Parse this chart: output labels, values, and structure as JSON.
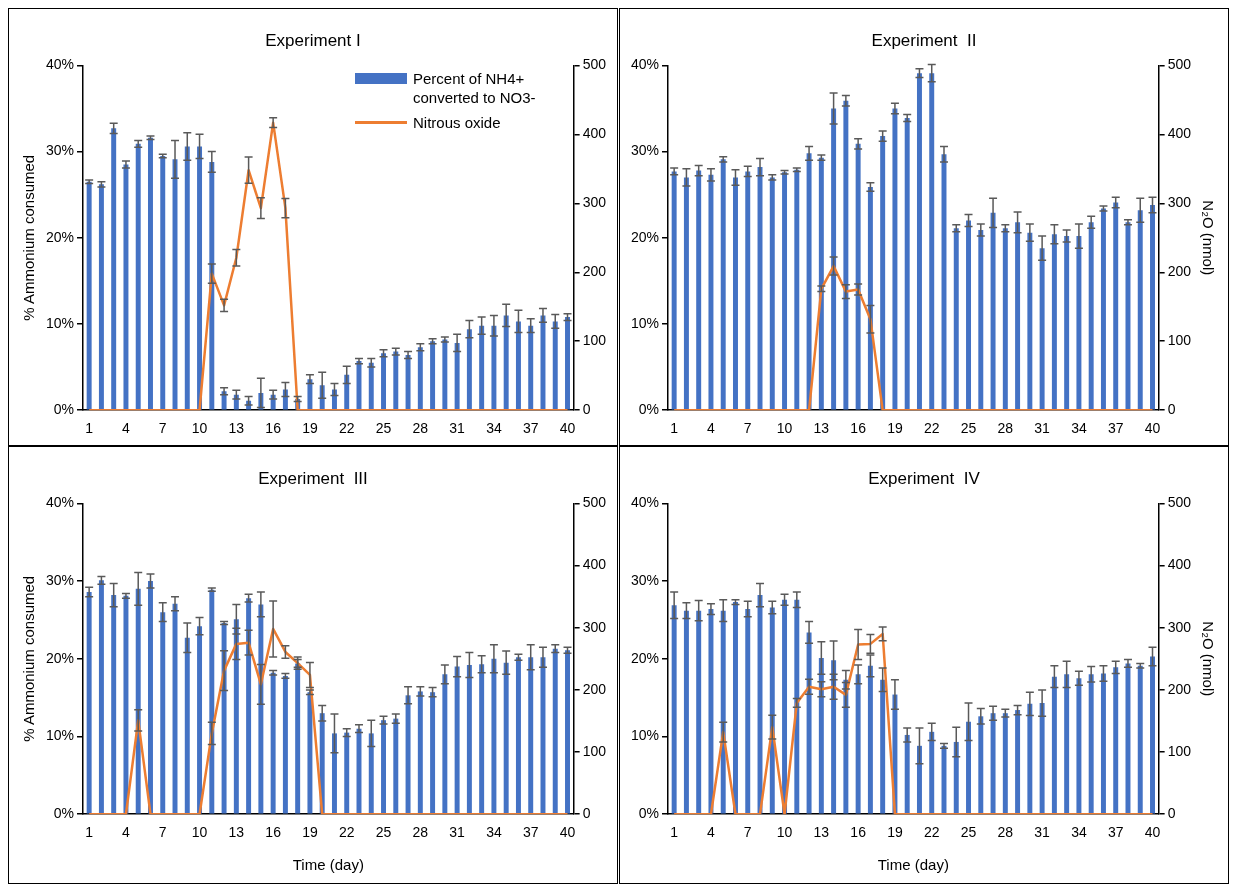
{
  "chart_data": [
    {
      "type": "bar",
      "title": "Experiment I",
      "ylabel": "% Ammonium consumed",
      "legend": "top right",
      "categories": [
        "1",
        null,
        null,
        "4",
        null,
        null,
        "7",
        null,
        null,
        "10",
        null,
        null,
        "13",
        null,
        null,
        "16",
        null,
        null,
        "19",
        null,
        null,
        "22",
        null,
        null,
        "25",
        null,
        null,
        "28",
        null,
        null,
        "31",
        null,
        null,
        "34",
        null,
        null,
        "37",
        null,
        null,
        "40"
      ],
      "series": [
        {
          "name": "Percent of NH4+ converted to NO3-",
          "color": "#4472c4",
          "values": [
            26.5,
            26.2,
            32.7,
            28.5,
            30.9,
            31.6,
            29.5,
            29.1,
            30.6,
            30.6,
            28.8,
            2.2,
            1.8,
            1.1,
            2.0,
            1.8,
            2.4,
            1.3,
            3.6,
            2.9,
            2.4,
            4.1,
            5.7,
            5.5,
            6.6,
            6.8,
            6.4,
            7.3,
            8.0,
            8.2,
            7.8,
            9.4,
            9.8,
            9.8,
            11.0,
            10.3,
            9.8,
            11.0,
            10.3,
            10.8
          ],
          "errors": [
            0.2,
            0.3,
            0.6,
            0.4,
            0.4,
            0.2,
            0.2,
            2.2,
            1.6,
            1.4,
            1.2,
            0.4,
            0.5,
            0.5,
            1.7,
            0.5,
            0.8,
            0.3,
            0.5,
            1.5,
            0.7,
            1.0,
            0.3,
            0.5,
            0.4,
            0.4,
            0.4,
            0.4,
            0.3,
            0.3,
            1.0,
            1.0,
            1.0,
            1.2,
            1.3,
            1.3,
            0.8,
            0.8,
            0.8,
            0.4
          ]
        },
        {
          "name": "Nitrous oxide",
          "type": "line",
          "axis": "y2",
          "color": "#ed7d31",
          "values": [
            0,
            0,
            0,
            0,
            0,
            0,
            0,
            0,
            0,
            0,
            198,
            152,
            221,
            348,
            293,
            417,
            293,
            0,
            0,
            0,
            0,
            0,
            0,
            0,
            0,
            0,
            0,
            0,
            0,
            0,
            0,
            0,
            0,
            0,
            0,
            0,
            0,
            0,
            0,
            0
          ],
          "errors": [
            null,
            null,
            null,
            null,
            null,
            null,
            null,
            null,
            null,
            null,
            14,
            9,
            12,
            19,
            15,
            7,
            14,
            null,
            null,
            null,
            null,
            null,
            null,
            null,
            null,
            null,
            null,
            null,
            null,
            null,
            null,
            null,
            null,
            null,
            null,
            null,
            null,
            null,
            null,
            null
          ]
        }
      ],
      "ylim": [
        0,
        40
      ],
      "yticks": [
        {
          "value": 0,
          "label": "0%"
        },
        {
          "value": 10,
          "label": "10%"
        },
        {
          "value": 20,
          "label": "20%"
        },
        {
          "value": 30,
          "label": "30%"
        },
        {
          "value": 40,
          "label": "40%"
        }
      ],
      "y2lim": [
        0,
        500
      ],
      "y2ticks": [
        0,
        100,
        200,
        300,
        400,
        500
      ]
    },
    {
      "type": "bar",
      "title": "Experiment  II",
      "y2label": "N₂O (nmol)",
      "legend": false,
      "categories": [
        "1",
        null,
        null,
        "4",
        null,
        null,
        "7",
        null,
        null,
        "10",
        null,
        null,
        "13",
        null,
        null,
        "16",
        null,
        null,
        "19",
        null,
        null,
        "22",
        null,
        null,
        "25",
        null,
        null,
        "28",
        null,
        null,
        "31",
        null,
        null,
        "34",
        null,
        null,
        "37",
        null,
        null,
        "40"
      ],
      "series": [
        {
          "color": "#4472c4",
          "values": [
            27.7,
            27.0,
            27.8,
            27.3,
            29.1,
            27.0,
            27.7,
            28.2,
            27.0,
            27.6,
            27.9,
            29.8,
            29.3,
            35.0,
            35.9,
            30.9,
            25.9,
            31.8,
            35.0,
            33.9,
            39.1,
            39.1,
            29.7,
            21.1,
            22.0,
            20.9,
            22.9,
            21.1,
            21.8,
            20.6,
            18.8,
            20.4,
            20.2,
            20.2,
            21.8,
            23.4,
            24.1,
            21.8,
            23.2,
            23.8
          ],
          "errors": [
            0.4,
            1.0,
            0.6,
            0.7,
            0.3,
            0.9,
            0.6,
            1.0,
            0.3,
            0.2,
            0.2,
            0.8,
            0.3,
            1.8,
            0.6,
            0.6,
            0.5,
            0.6,
            0.6,
            0.4,
            0.5,
            1.0,
            0.9,
            0.4,
            0.7,
            0.7,
            1.7,
            0.4,
            1.2,
            1.0,
            1.4,
            1.1,
            0.7,
            1.4,
            0.7,
            0.3,
            0.6,
            0.3,
            1.4,
            0.9
          ]
        },
        {
          "type": "line",
          "axis": "y2",
          "color": "#ed7d31",
          "values": [
            0,
            0,
            0,
            0,
            0,
            0,
            0,
            0,
            0,
            0,
            0,
            0,
            176,
            209,
            172,
            175,
            132,
            0,
            0,
            0,
            0,
            0,
            0,
            0,
            0,
            0,
            0,
            0,
            0,
            0,
            0,
            0,
            0,
            0,
            0,
            0,
            0,
            0,
            0,
            0
          ],
          "errors": [
            null,
            null,
            null,
            null,
            null,
            null,
            null,
            null,
            null,
            null,
            null,
            null,
            4,
            13,
            10,
            8,
            20,
            null,
            null,
            null,
            null,
            null,
            null,
            null,
            null,
            null,
            null,
            null,
            null,
            null,
            null,
            null,
            null,
            null,
            null,
            null,
            null,
            null,
            null,
            null
          ]
        }
      ],
      "ylim": [
        0,
        40
      ],
      "yticks": [
        {
          "value": 0,
          "label": "0%"
        },
        {
          "value": 10,
          "label": "10%"
        },
        {
          "value": 20,
          "label": "20%"
        },
        {
          "value": 30,
          "label": "30%"
        },
        {
          "value": 40,
          "label": "40%"
        }
      ],
      "y2lim": [
        0,
        500
      ],
      "y2ticks": [
        0,
        100,
        200,
        300,
        400,
        500
      ]
    },
    {
      "type": "bar",
      "title": "Experiment  III",
      "ylabel": "% Ammonium consumed",
      "xlabel": "Time (day)",
      "legend": false,
      "categories": [
        "1",
        null,
        null,
        "4",
        null,
        null,
        "7",
        null,
        null,
        "10",
        null,
        null,
        "13",
        null,
        null,
        "16",
        null,
        null,
        "19",
        null,
        null,
        "22",
        null,
        null,
        "25",
        null,
        null,
        "28",
        null,
        null,
        "31",
        null,
        null,
        "34",
        null,
        null,
        "37",
        null,
        null,
        "40"
      ],
      "series": [
        {
          "color": "#4472c4",
          "values": [
            28.6,
            30.1,
            28.2,
            28.1,
            29.0,
            30.0,
            26.0,
            27.1,
            22.7,
            24.2,
            28.9,
            24.6,
            25.1,
            27.8,
            27.0,
            18.2,
            17.8,
            19.4,
            15.7,
            13.0,
            10.4,
            10.5,
            11.0,
            10.4,
            12.1,
            12.3,
            15.3,
            15.8,
            15.7,
            18.0,
            19.0,
            19.2,
            19.3,
            20.0,
            19.5,
            20.2,
            20.2,
            20.2,
            21.3,
            21.1
          ],
          "errors": [
            0.6,
            0.5,
            1.5,
            0.3,
            2.1,
            0.9,
            1.2,
            0.9,
            1.9,
            1.1,
            0.2,
            0.2,
            1.9,
            0.5,
            1.6,
            0.3,
            0.3,
            0.5,
            0.3,
            1.0,
            2.5,
            0.5,
            0.5,
            1.7,
            0.5,
            0.6,
            1.1,
            0.6,
            0.6,
            1.2,
            1.3,
            1.6,
            1.1,
            1.8,
            1.5,
            0.4,
            1.6,
            1.3,
            0.5,
            0.4
          ]
        },
        {
          "type": "line",
          "axis": "y2",
          "color": "#ed7d31",
          "values": [
            0,
            0,
            0,
            0,
            151,
            0,
            0,
            0,
            0,
            0,
            130,
            231,
            274,
            276,
            209,
            298,
            261,
            243,
            224,
            0,
            0,
            0,
            0,
            0,
            0,
            0,
            0,
            0,
            0,
            0,
            0,
            0,
            0,
            0,
            0,
            0,
            0,
            0,
            0,
            0
          ],
          "errors": [
            null,
            null,
            null,
            null,
            17,
            null,
            null,
            null,
            null,
            null,
            18,
            32,
            25,
            20,
            32,
            45,
            10,
            10,
            20,
            null,
            null,
            null,
            null,
            null,
            null,
            null,
            null,
            null,
            null,
            null,
            null,
            null,
            null,
            null,
            null,
            null,
            null,
            null,
            null,
            null
          ]
        }
      ],
      "ylim": [
        0,
        40
      ],
      "yticks": [
        {
          "value": 0,
          "label": "0%"
        },
        {
          "value": 10,
          "label": "10%"
        },
        {
          "value": 20,
          "label": "20%"
        },
        {
          "value": 30,
          "label": "30%"
        },
        {
          "value": 40,
          "label": "40%"
        }
      ],
      "y2lim": [
        0,
        500
      ],
      "y2ticks": [
        0,
        100,
        200,
        300,
        400,
        500
      ]
    },
    {
      "type": "bar",
      "title": "Experiment  IV",
      "y2label": "N₂O (nmol)",
      "xlabel": "Time (day)",
      "legend": false,
      "categories": [
        "1",
        null,
        null,
        "4",
        null,
        null,
        "7",
        null,
        null,
        "10",
        null,
        null,
        "13",
        null,
        null,
        "16",
        null,
        null,
        "19",
        null,
        null,
        "22",
        null,
        null,
        "25",
        null,
        null,
        "28",
        null,
        null,
        "31",
        null,
        null,
        "34",
        null,
        null,
        "37",
        null,
        null,
        "40"
      ],
      "series": [
        {
          "color": "#4472c4",
          "values": [
            26.9,
            26.2,
            26.2,
            26.4,
            26.2,
            27.3,
            26.4,
            28.2,
            26.6,
            27.6,
            27.6,
            23.4,
            20.1,
            19.8,
            17.3,
            18.0,
            19.1,
            17.3,
            15.4,
            10.2,
            8.8,
            10.6,
            8.8,
            9.3,
            11.9,
            12.6,
            13.0,
            13.0,
            13.4,
            14.2,
            14.3,
            17.7,
            18.0,
            17.5,
            18.0,
            18.1,
            18.9,
            19.4,
            19.1,
            20.3
          ],
          "errors": [
            1.7,
            1.0,
            1.3,
            0.7,
            1.4,
            0.3,
            1.0,
            1.5,
            0.8,
            0.7,
            1.0,
            1.4,
            2.1,
            2.5,
            1.2,
            1.2,
            1.4,
            1.5,
            1.9,
            0.9,
            2.3,
            1.1,
            0.3,
            1.9,
            2.4,
            1.0,
            0.9,
            0.5,
            0.6,
            1.5,
            1.7,
            1.4,
            1.7,
            0.9,
            1.0,
            1.0,
            0.8,
            0.5,
            0.3,
            1.2
          ]
        },
        {
          "type": "line",
          "axis": "y2",
          "color": "#ed7d31",
          "values": [
            0,
            0,
            0,
            0,
            132,
            0,
            0,
            0,
            140,
            0,
            179,
            205,
            201,
            205,
            192,
            273,
            274,
            290,
            0,
            0,
            0,
            0,
            0,
            0,
            0,
            0,
            0,
            0,
            0,
            0,
            0,
            0,
            0,
            0,
            0,
            0,
            0,
            0,
            0,
            0
          ],
          "errors": [
            null,
            null,
            null,
            null,
            16,
            null,
            null,
            null,
            19,
            null,
            7,
            12,
            12,
            20,
            20,
            24,
            15,
            11,
            null,
            null,
            null,
            null,
            null,
            null,
            null,
            null,
            null,
            null,
            null,
            null,
            null,
            null,
            null,
            null,
            null,
            null,
            null,
            null,
            null,
            null
          ]
        }
      ],
      "ylim": [
        0,
        40
      ],
      "yticks": [
        {
          "value": 0,
          "label": "0%"
        },
        {
          "value": 10,
          "label": "10%"
        },
        {
          "value": 20,
          "label": "20%"
        },
        {
          "value": 30,
          "label": "30%"
        },
        {
          "value": 40,
          "label": "40%"
        }
      ],
      "y2lim": [
        0,
        500
      ],
      "y2ticks": [
        0,
        100,
        200,
        300,
        400,
        500
      ]
    }
  ]
}
